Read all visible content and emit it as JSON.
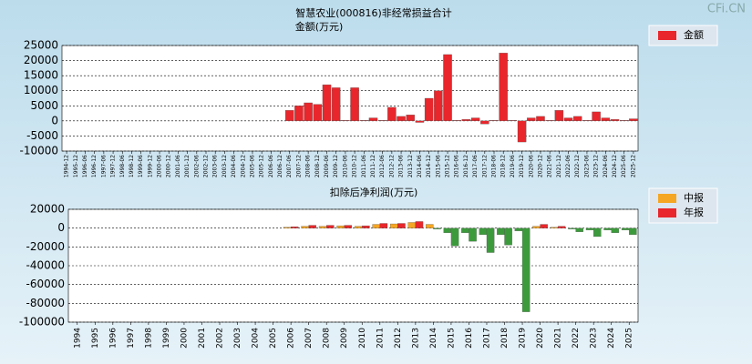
{
  "watermark": "CFi.CN",
  "chart_data": [
    {
      "type": "bar",
      "title": "智慧农业(000816)非经常损益合计",
      "subtitle": "金额(万元)",
      "categories": [
        "1994-12",
        "1995-12",
        "1996-06",
        "1996-12",
        "1997-06",
        "1997-12",
        "1998-06",
        "1998-12",
        "1999-06",
        "1999-12",
        "2000-06",
        "2000-12",
        "2001-06",
        "2001-12",
        "2002-06",
        "2002-12",
        "2003-06",
        "2003-12",
        "2004-06",
        "2004-12",
        "2005-06",
        "2005-12",
        "2006-06",
        "2006-12",
        "2007-06",
        "2007-12",
        "2008-06",
        "2008-12",
        "2009-06",
        "2009-12",
        "2010-06",
        "2010-12",
        "2011-06",
        "2011-12",
        "2012-06",
        "2012-12",
        "2013-06",
        "2013-12",
        "2014-06",
        "2014-12",
        "2015-06",
        "2015-12",
        "2016-06",
        "2016-12",
        "2017-06",
        "2017-12",
        "2018-06",
        "2018-12",
        "2019-06",
        "2019-12",
        "2020-06",
        "2020-12",
        "2021-06",
        "2021-12",
        "2022-06",
        "2022-12",
        "2023-06",
        "2023-12",
        "2024-06",
        "2024-12",
        "2025-06",
        "2025-12"
      ],
      "series": [
        {
          "name": "金额",
          "color": "#e8262b",
          "values": [
            null,
            null,
            null,
            null,
            null,
            null,
            null,
            null,
            null,
            null,
            null,
            null,
            null,
            null,
            null,
            null,
            null,
            null,
            null,
            null,
            null,
            null,
            null,
            null,
            3500,
            5000,
            6000,
            5500,
            12000,
            11000,
            200,
            11000,
            200,
            1000,
            200,
            4500,
            1500,
            2000,
            -500,
            7500,
            10000,
            22000,
            200,
            500,
            1000,
            -1000,
            200,
            22500,
            200,
            -7000,
            1000,
            1500,
            200,
            3500,
            1000,
            1500,
            200,
            3000,
            1000,
            500,
            200,
            700
          ]
        }
      ],
      "ylim": [
        -10000,
        25000
      ],
      "yticks": [
        -10000,
        -5000,
        0,
        5000,
        10000,
        15000,
        20000,
        25000
      ],
      "grid": true,
      "legend": "right"
    },
    {
      "type": "bar",
      "title": "扣除后净利润(万元)",
      "categories": [
        "1994",
        "1995",
        "1996",
        "1997",
        "1998",
        "1999",
        "2000",
        "2001",
        "2002",
        "2003",
        "2004",
        "2005",
        "2006",
        "2007",
        "2008",
        "2009",
        "2010",
        "2011",
        "2012",
        "2013",
        "2014",
        "2015",
        "2016",
        "2017",
        "2018",
        "2019",
        "2020",
        "2021",
        "2022",
        "2023",
        "2024",
        "2025"
      ],
      "series": [
        {
          "name": "中报",
          "color": "#f5a623",
          "values": [
            null,
            null,
            null,
            null,
            null,
            null,
            null,
            null,
            null,
            null,
            null,
            null,
            1000,
            2000,
            2000,
            2500,
            2000,
            4000,
            4500,
            6000,
            4000,
            -5000,
            -5000,
            -7000,
            -7000,
            -3000,
            2000,
            1000,
            -1000,
            -2000,
            -2000,
            -2000
          ]
        },
        {
          "name": "年报",
          "color": "#e8262b",
          "values": [
            null,
            null,
            null,
            null,
            null,
            null,
            null,
            null,
            null,
            null,
            null,
            null,
            1500,
            3000,
            3000,
            3000,
            2500,
            5000,
            5000,
            7000,
            -1000,
            -19000,
            -14000,
            -26000,
            -18000,
            -89000,
            4000,
            2000,
            -4000,
            -9000,
            -5000,
            -7000
          ]
        }
      ],
      "negative_color": "#3c9a3c",
      "ylim": [
        -100000,
        20000
      ],
      "yticks": [
        -100000,
        -80000,
        -60000,
        -40000,
        -20000,
        0,
        20000
      ],
      "grid": true,
      "legend": "right"
    }
  ]
}
